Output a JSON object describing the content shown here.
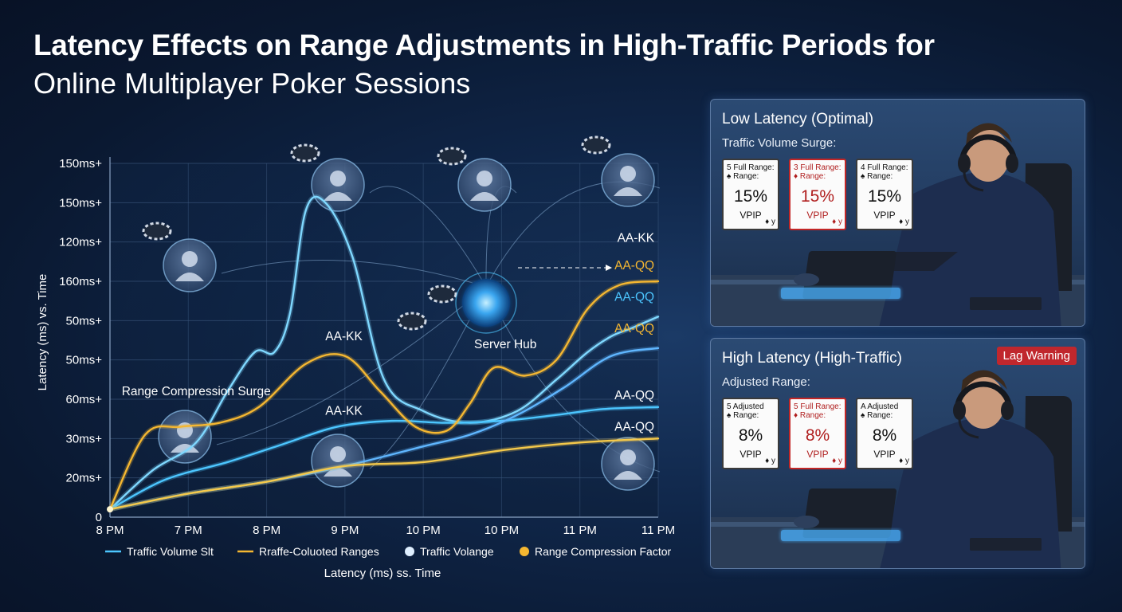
{
  "title": {
    "line1": "Latency Effects on Range Adjustments in High-Traffic Periods for",
    "line2": "Online Multiplayer Poker Sessions"
  },
  "colors": {
    "blue": "#4cc6ff",
    "yellow": "#f5b731",
    "panel_red": "#c0272d"
  },
  "chart_data": {
    "type": "line",
    "ylabel": "Latency (ms) vs. Time",
    "xlabel": "Latency (ms) ss. Time",
    "y_tick_labels": [
      "0",
      "20ms+",
      "30ms+",
      "60ms+",
      "50ms+",
      "50ms+",
      "160ms+",
      "120ms+",
      "150ms+",
      "150ms+"
    ],
    "x_tick_labels": [
      "8 PM",
      "7 PM",
      "8 PM",
      "9 PM",
      "10 PM",
      "10 PM",
      "11 PM",
      "11 PM"
    ],
    "grid": true,
    "legend": [
      {
        "label": "Traffic Volume Slt",
        "marker": "line",
        "color": "#4cc6ff"
      },
      {
        "label": "Rraffe-Coluoted Ranges",
        "marker": "line",
        "color": "#f5b731"
      },
      {
        "label": "Traffic Volange",
        "marker": "dot",
        "color": "#dfefff"
      },
      {
        "label": "Range Compression Factor",
        "marker": "dot",
        "color": "#f5b731"
      }
    ],
    "series": [
      {
        "color": "#7fd8ff",
        "x": [
          0,
          0.55,
          1.1,
          1.5,
          1.85,
          2.1,
          2.3,
          2.5,
          2.75,
          3.1,
          3.5,
          4.0,
          4.6,
          5.2,
          5.7,
          6.1,
          6.4,
          6.65,
          7.0
        ],
        "y": [
          0.2,
          1.2,
          1.9,
          3.2,
          4.2,
          4.2,
          5.2,
          7.8,
          8.0,
          6.6,
          3.5,
          2.7,
          2.4,
          2.7,
          3.5,
          4.2,
          4.6,
          4.8,
          5.1
        ]
      },
      {
        "color": "#4cc6ff",
        "x": [
          0,
          0.7,
          1.5,
          2.2,
          2.9,
          3.6,
          4.3,
          5.0,
          5.7,
          6.3,
          7.0
        ],
        "y": [
          0.2,
          0.95,
          1.4,
          1.85,
          2.3,
          2.45,
          2.4,
          2.45,
          2.6,
          2.75,
          2.8
        ]
      },
      {
        "color": "#5fb6ff",
        "x": [
          0,
          1.0,
          2.0,
          3.0,
          4.0,
          4.6,
          5.2,
          5.8,
          6.4,
          7.0
        ],
        "y": [
          0.2,
          0.6,
          0.9,
          1.3,
          1.8,
          2.1,
          2.6,
          3.3,
          4.1,
          4.3
        ]
      },
      {
        "color": "#f5b731",
        "x": [
          0,
          0.45,
          0.9,
          1.4,
          1.9,
          2.5,
          3.0,
          3.45,
          3.9,
          4.3,
          4.6,
          4.9,
          5.3,
          5.7,
          6.1,
          6.5,
          7.0
        ],
        "y": [
          0.2,
          2.1,
          2.3,
          2.4,
          2.8,
          3.9,
          4.1,
          3.2,
          2.3,
          2.2,
          2.9,
          3.8,
          3.6,
          4.0,
          5.3,
          5.9,
          6.0
        ]
      },
      {
        "color": "#f5c94a",
        "x": [
          0,
          1.0,
          2.0,
          3.0,
          4.0,
          5.0,
          6.0,
          7.0
        ],
        "y": [
          0.2,
          0.6,
          0.9,
          1.3,
          1.4,
          1.7,
          1.9,
          2.0
        ]
      }
    ],
    "annotations": [
      {
        "text": "AA-KK",
        "color": "#ffffff",
        "x": 6.95,
        "y": 7.0
      },
      {
        "text": "AA-QQ",
        "color": "#f5b731",
        "x": 6.95,
        "y": 6.3
      },
      {
        "text": "AA-QQ",
        "color": "#4cc6ff",
        "x": 6.95,
        "y": 5.5
      },
      {
        "text": "AA-QQ",
        "color": "#f5b731",
        "x": 6.95,
        "y": 4.7
      },
      {
        "text": "AA-QQ",
        "color": "#ffffff",
        "x": 6.95,
        "y": 3.0
      },
      {
        "text": "AA-QQ",
        "color": "#ffffff",
        "x": 6.95,
        "y": 2.2
      },
      {
        "text": "AA-KK",
        "color": "#ffffff",
        "x": 2.75,
        "y": 4.5
      },
      {
        "text": "AA-KK",
        "color": "#ffffff",
        "x": 2.75,
        "y": 2.6
      },
      {
        "text": "Range Compression Surge",
        "color": "#ffffff",
        "x": 0.15,
        "y": 3.1
      },
      {
        "text": "Server Hub",
        "color": "#ffffff",
        "x": 4.65,
        "y": 4.3
      }
    ]
  },
  "panels": [
    {
      "title": "Low Latency (Optimal)",
      "subtitle": "Traffic Volume Surge:",
      "warning": "",
      "cards": [
        {
          "corner1": "5 Full Range:",
          "corner2": "♠ Range:",
          "pct": "15%",
          "vpip": "VPIP",
          "suit": "♦ y",
          "red": false
        },
        {
          "corner1": "3 Full Range:",
          "corner2": "♦ Range:",
          "pct": "15%",
          "vpip": "VPIP",
          "suit": "♦ y",
          "red": true
        },
        {
          "corner1": "4 Full Range:",
          "corner2": "♠ Range:",
          "pct": "15%",
          "vpip": "VPIP",
          "suit": "♦ y",
          "red": false
        }
      ]
    },
    {
      "title": "High Latency (High-Traffic)",
      "subtitle": "Adjusted Range:",
      "warning": "Lag Warning",
      "cards": [
        {
          "corner1": "5 Adjusted",
          "corner2": "♠ Range:",
          "pct": "8%",
          "vpip": "VPIP",
          "suit": "♦ y",
          "red": false
        },
        {
          "corner1": "5 Full Range:",
          "corner2": "♦ Range:",
          "pct": "8%",
          "vpip": "VPIP",
          "suit": "♦ y",
          "red": true
        },
        {
          "corner1": "A Adjusted",
          "corner2": "♠ Range:",
          "pct": "8%",
          "vpip": "VPIP",
          "suit": "♦ y",
          "red": false
        }
      ]
    }
  ]
}
